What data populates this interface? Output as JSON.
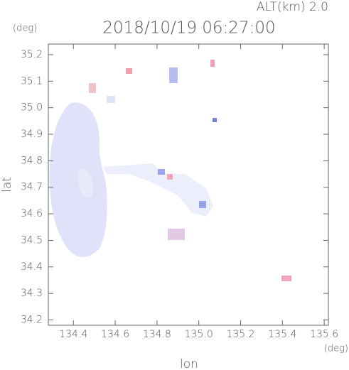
{
  "chart_data": {
    "type": "map",
    "title": "2018/10/19 06:27:00",
    "subtitle": "ALT(km)  2.0",
    "y_unit": "(deg)",
    "x_unit": "(deg)",
    "xlabel": "lon",
    "ylabel": "lat",
    "xlim": [
      134.28,
      135.62
    ],
    "ylim": [
      34.18,
      35.24
    ],
    "xticks": [
      134.4,
      134.6,
      134.8,
      {
        "value": 135,
        "label": "135.0"
      },
      135.2,
      135.4,
      135.6
    ],
    "yticks": [
      34.2,
      34.3,
      34.4,
      34.5,
      34.6,
      34.7,
      34.8,
      34.9,
      {
        "value": 35,
        "label": "35.0"
      },
      35.1,
      35.2
    ]
  }
}
